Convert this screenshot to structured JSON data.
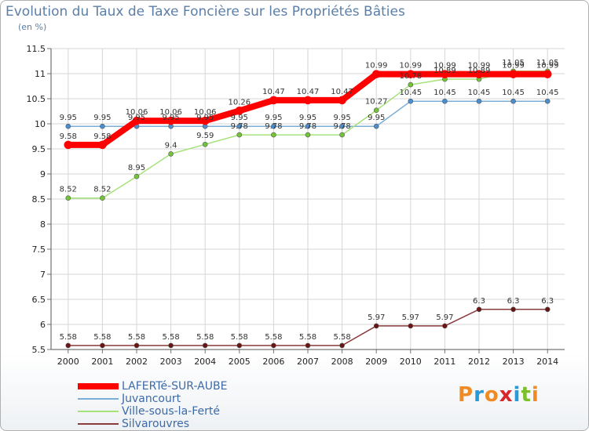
{
  "title": "Evolution du Taux de Taxe Foncière sur les Propriétés Bâties",
  "subtitle": "(en %)",
  "logo": {
    "text": "Proxiti",
    "colors": [
      "#f08a24",
      "#2a9ad6",
      "#f08a24",
      "#d8262b",
      "#2a9ad6",
      "#7bbf2a",
      "#f08a24"
    ]
  },
  "chart_data": {
    "type": "line",
    "title": "Evolution du Taux de Taxe Foncière sur les Propriétés Bâties",
    "ylabel": "(en %)",
    "xlabel": "",
    "ylim": [
      5.5,
      11.5
    ],
    "yticks": [
      "5.5",
      "6",
      "6.5",
      "7",
      "7.5",
      "8",
      "8.5",
      "9",
      "9.5",
      "10",
      "10.5",
      "11",
      "11.5"
    ],
    "x": [
      "2000",
      "2001",
      "2002",
      "2003",
      "2004",
      "2005",
      "2006",
      "2007",
      "2008",
      "2009",
      "2010",
      "2011",
      "2012",
      "2013",
      "2014"
    ],
    "grid": true,
    "series": [
      {
        "name": "LAFERTé-SUR-AUBE",
        "color": "#ff0000",
        "marker": "#ff0000",
        "width": 8,
        "values": [
          9.58,
          9.58,
          10.06,
          10.06,
          10.06,
          10.26,
          10.47,
          10.47,
          10.47,
          10.99,
          10.99,
          10.99,
          10.99,
          10.99,
          10.99
        ],
        "labels": [
          "9.58",
          "9.58",
          "10.06",
          "10.06",
          "10.06",
          "10.26",
          "10.47",
          "10.47",
          "10.47",
          "10.99",
          "10.99",
          "10.99",
          "10.99",
          "10.99",
          "10.99"
        ]
      },
      {
        "name": "Juvancourt",
        "color": "#7aaed6",
        "marker": "#4b8ed0",
        "width": 1.5,
        "values": [
          9.95,
          9.95,
          9.95,
          9.95,
          9.95,
          9.95,
          9.95,
          9.95,
          9.95,
          9.95,
          10.45,
          10.45,
          10.45,
          10.45,
          10.45
        ],
        "labels": [
          "9.95",
          "9.95",
          "9.95",
          "9.95",
          "9.95",
          "9.95",
          "9.95",
          "9.95",
          "9.95",
          "9.95",
          "10.45",
          "10.45",
          "10.45",
          "10.45",
          "10.45"
        ]
      },
      {
        "name": "Ville-sous-la-Ferté",
        "color": "#a6e27a",
        "marker": "#74c43a",
        "width": 1.5,
        "values": [
          8.52,
          8.52,
          8.95,
          9.4,
          9.59,
          9.78,
          9.78,
          9.78,
          9.78,
          10.27,
          10.78,
          10.89,
          10.89,
          11.05,
          11.05
        ],
        "labels": [
          "8.52",
          "8.52",
          "8.95",
          "9.4",
          "9.59",
          "9.78",
          "9.78",
          "9.78",
          "9.78",
          "10.27",
          "10.78",
          "10.89",
          "10.89",
          "11.05",
          "11.05"
        ]
      },
      {
        "name": "Silvarouvres",
        "color": "#8a3b3b",
        "marker": "#6a1414",
        "width": 1.5,
        "values": [
          5.58,
          5.58,
          5.58,
          5.58,
          5.58,
          5.58,
          5.58,
          5.58,
          5.58,
          5.97,
          5.97,
          5.97,
          6.3,
          6.3,
          6.3
        ],
        "labels": [
          "5.58",
          "5.58",
          "5.58",
          "5.58",
          "5.58",
          "5.58",
          "5.58",
          "5.58",
          "5.58",
          "5.97",
          "5.97",
          "5.97",
          "6.3",
          "6.3",
          "6.3"
        ]
      }
    ]
  }
}
